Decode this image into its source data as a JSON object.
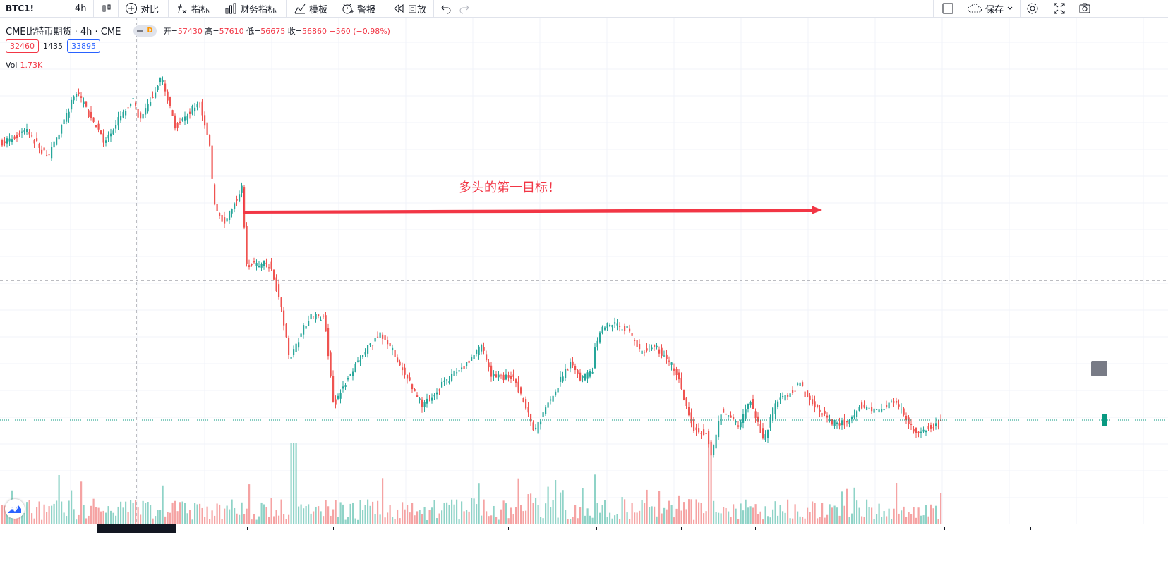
{
  "toolbar": {
    "symbol": "BTC1!",
    "interval": "4h",
    "compare_label": "对比",
    "indicators_label": "指标",
    "financials_label": "财务指标",
    "templates_label": "模板",
    "alert_label": "警报",
    "replay_label": "回放",
    "save_label": "保存"
  },
  "legend": {
    "title": "CME比特币期货 · 4h · CME",
    "badge": "D",
    "open_label": "开=",
    "open": "57430",
    "high_label": "高=",
    "high": "57610",
    "low_label": "低=",
    "low": "56675",
    "close_label": "收=",
    "close": "56860",
    "change": "−560 (−0.98%)",
    "bid": "32460",
    "spread": "1435",
    "ask": "33895",
    "volume_label": "Vol",
    "volume": "1.73K"
  },
  "annotation": {
    "text": "多头的第一目标！"
  },
  "colors": {
    "up": "#26a69a",
    "down": "#ef5350",
    "up_volume": "#8fd3c7",
    "down_volume": "#f5a3a3",
    "annotation": "#f23645",
    "accent": "#2962ff"
  },
  "icons": [
    "bar-style-icon",
    "compare-icon",
    "indicators-icon",
    "financials-icon",
    "templates-icon",
    "alert-icon",
    "replay-icon",
    "undo-icon",
    "redo-icon",
    "fullscreen-icon",
    "save-cloud-icon",
    "settings-icon",
    "expand-icon",
    "snapshot-icon",
    "tradingview-logo-icon"
  ]
}
